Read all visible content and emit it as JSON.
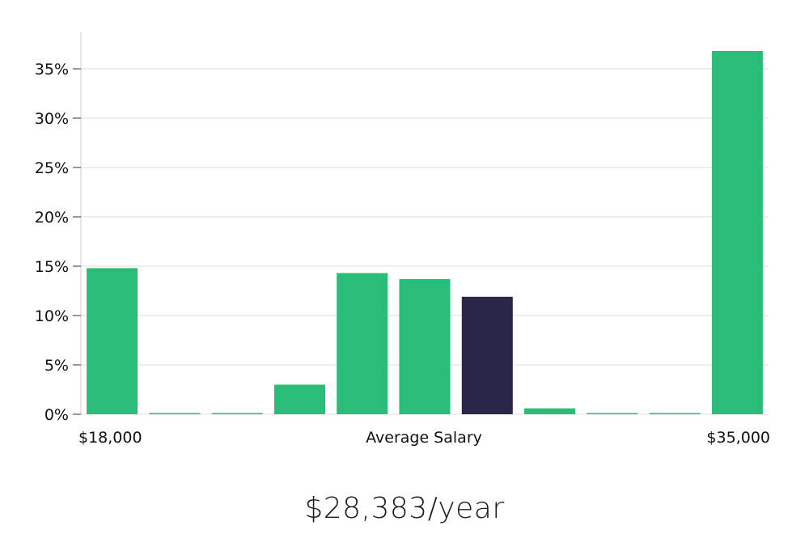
{
  "chart_data": {
    "type": "bar",
    "values": [
      14.8,
      0.1,
      0.1,
      3.0,
      14.3,
      13.7,
      11.9,
      0.6,
      0.1,
      0.1,
      36.8
    ],
    "highlight_index": 6,
    "ylim": [
      0,
      38
    ],
    "y_ticks": [
      0,
      5,
      10,
      15,
      20,
      25,
      30,
      35
    ],
    "y_tick_suffix": "%",
    "x_start_label": "$18,000",
    "x_mid_label": "Average Salary",
    "x_end_label": "$35,000",
    "grid": true,
    "colors": {
      "bar": "#2abd79",
      "highlight": "#272646",
      "grid": "#dddddd",
      "axis": "#cfcfcf"
    }
  },
  "summary": {
    "average_salary": "$28,383/year"
  }
}
